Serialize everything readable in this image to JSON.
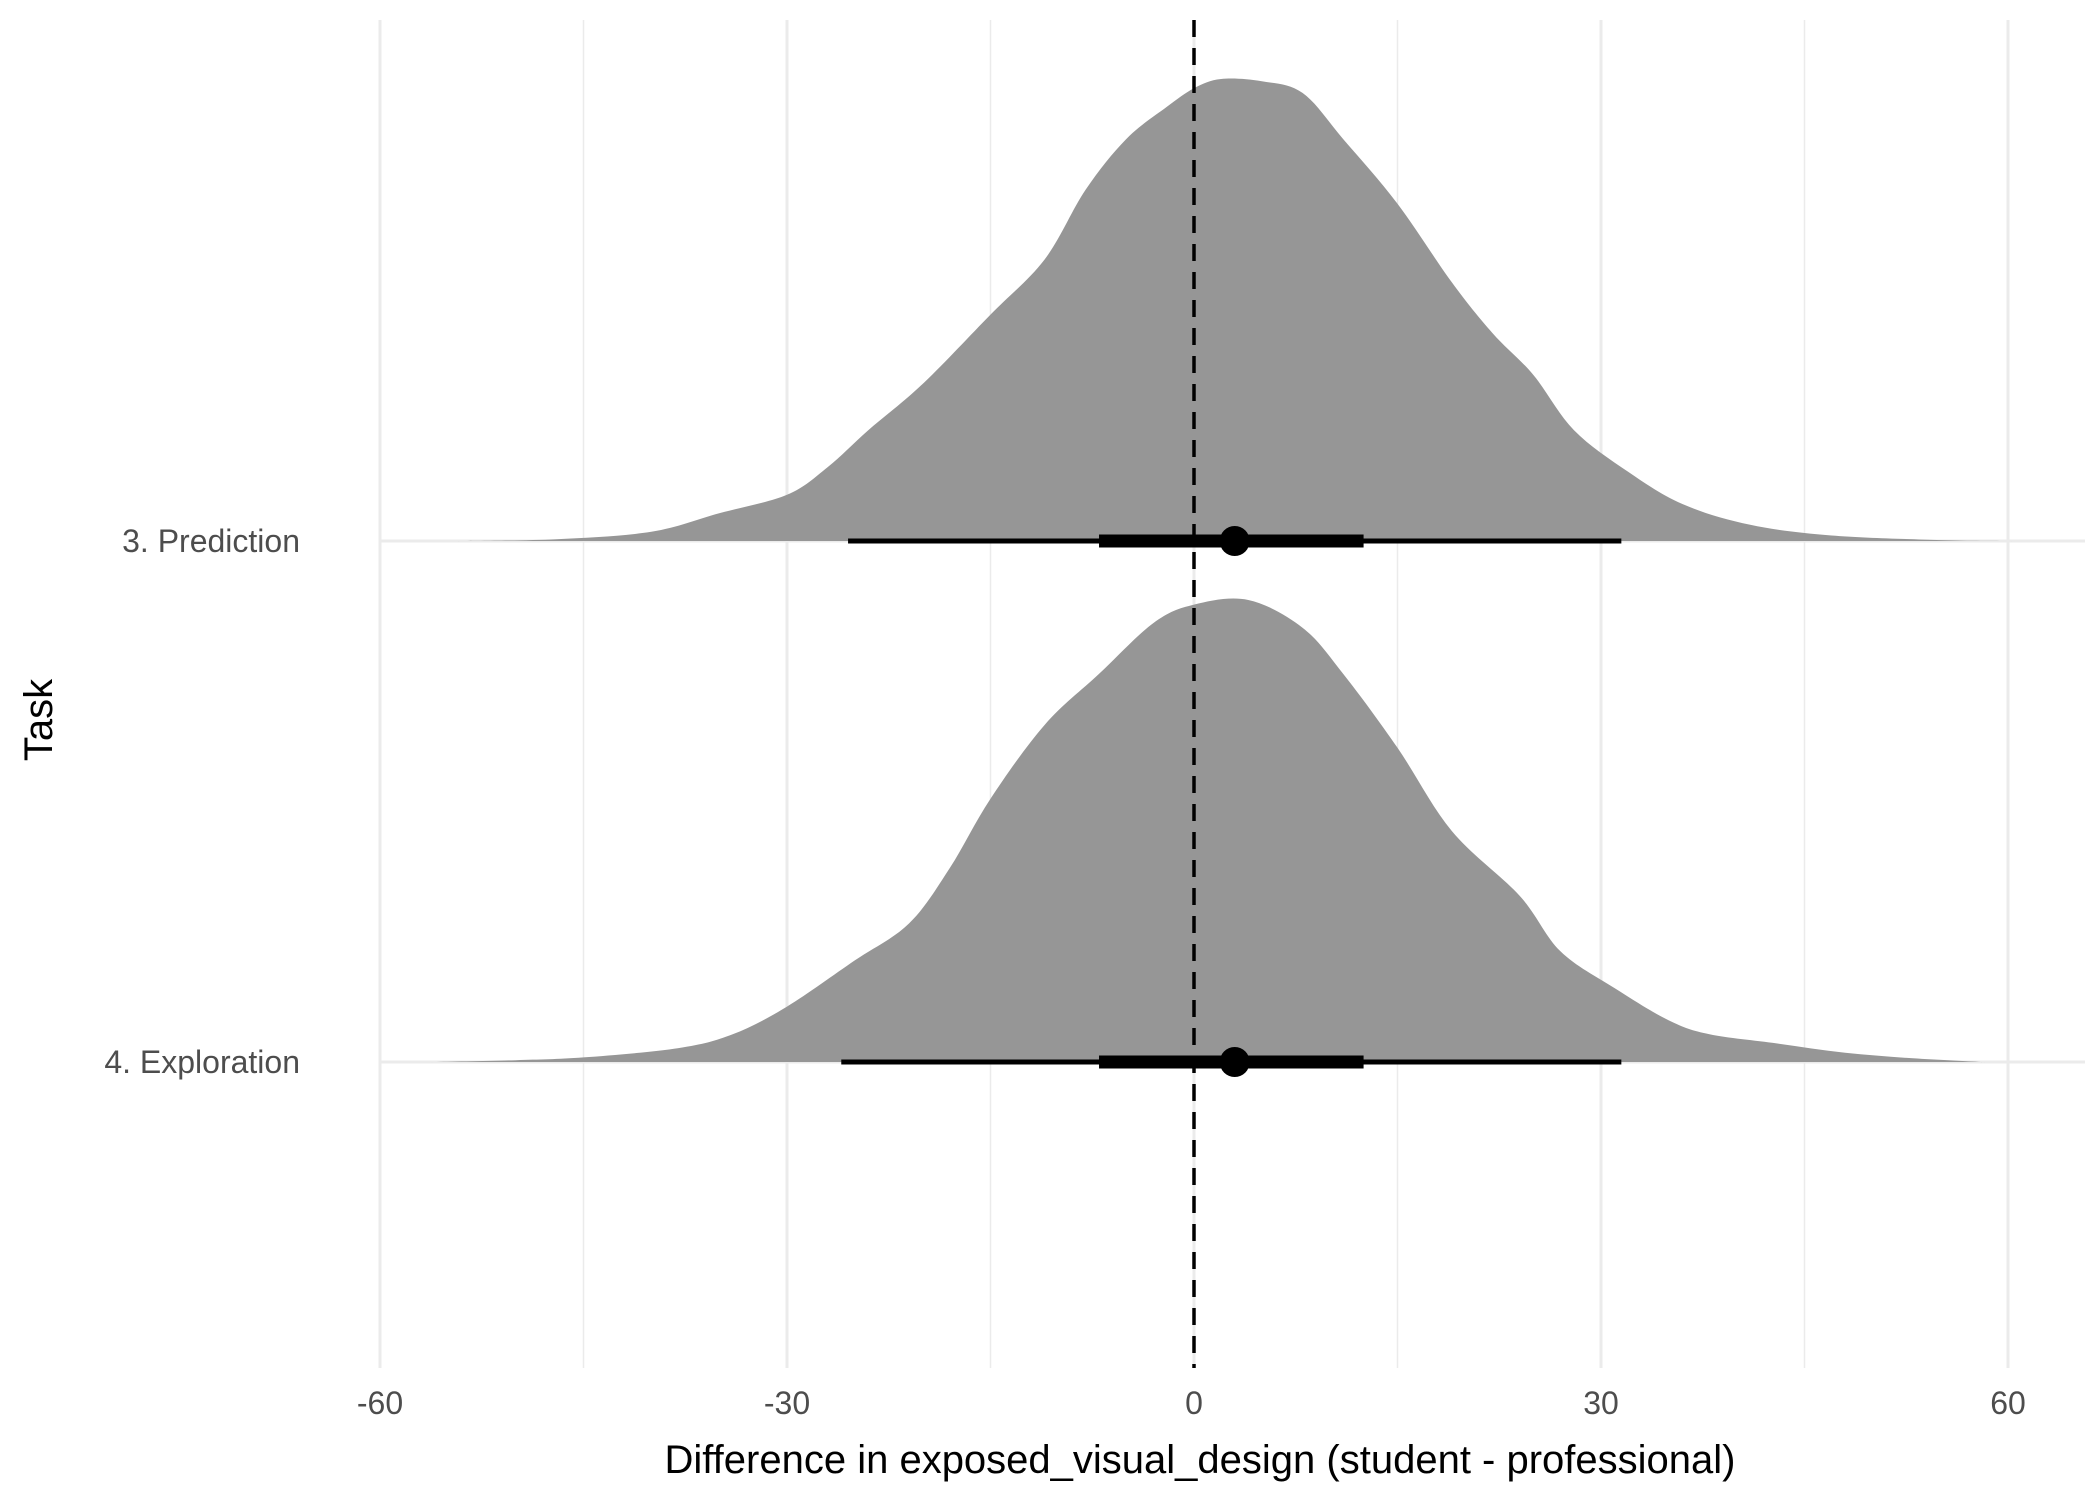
{
  "chart_data": {
    "type": "area",
    "subtype": "ridgeline density with point-interval",
    "xlabel": "Difference in exposed_visual_design (student - professional)",
    "ylabel": "Task",
    "xlim": [
      -60,
      60
    ],
    "x_ticks": [
      -60,
      -30,
      0,
      30,
      60
    ],
    "x_minor_ticks": [
      -45,
      -15,
      15,
      45
    ],
    "categories": [
      "3. Prediction",
      "4. Exploration"
    ],
    "reference_line": {
      "x": 0,
      "style": "dashed"
    },
    "grid": true,
    "legend": "none",
    "colors": {
      "density_fill": "#969696",
      "interval": "#000000",
      "grid": "#ebebeb"
    },
    "series": [
      {
        "category": "3. Prediction",
        "point": 3,
        "interval_66": [
          -7,
          12.5
        ],
        "interval_95": [
          -25.5,
          31.5
        ],
        "density": [
          [
            -54,
            0
          ],
          [
            -47,
            0.004
          ],
          [
            -40,
            0.02
          ],
          [
            -35,
            0.06
          ],
          [
            -30,
            0.1
          ],
          [
            -27,
            0.16
          ],
          [
            -24,
            0.24
          ],
          [
            -20,
            0.34
          ],
          [
            -15,
            0.49
          ],
          [
            -11,
            0.61
          ],
          [
            -8,
            0.76
          ],
          [
            -5,
            0.87
          ],
          [
            -2,
            0.94
          ],
          [
            0,
            0.98
          ],
          [
            2,
            1.0
          ],
          [
            5,
            0.995
          ],
          [
            8,
            0.97
          ],
          [
            11,
            0.87
          ],
          [
            15,
            0.73
          ],
          [
            19,
            0.56
          ],
          [
            22,
            0.45
          ],
          [
            25,
            0.36
          ],
          [
            28,
            0.24
          ],
          [
            32,
            0.15
          ],
          [
            36,
            0.08
          ],
          [
            41,
            0.035
          ],
          [
            47,
            0.012
          ],
          [
            55,
            0.002
          ],
          [
            60,
            0
          ]
        ]
      },
      {
        "category": "4. Exploration",
        "point": 3,
        "interval_66": [
          -7,
          12.5
        ],
        "interval_95": [
          -26,
          31.5
        ],
        "density": [
          [
            -56,
            0
          ],
          [
            -50,
            0.004
          ],
          [
            -45,
            0.01
          ],
          [
            -38,
            0.03
          ],
          [
            -34,
            0.06
          ],
          [
            -30,
            0.12
          ],
          [
            -25,
            0.22
          ],
          [
            -21,
            0.3
          ],
          [
            -18,
            0.42
          ],
          [
            -15,
            0.57
          ],
          [
            -11,
            0.73
          ],
          [
            -7,
            0.84
          ],
          [
            -3,
            0.95
          ],
          [
            0,
            0.99
          ],
          [
            4,
            1.0
          ],
          [
            8,
            0.94
          ],
          [
            11,
            0.84
          ],
          [
            15,
            0.68
          ],
          [
            19,
            0.5
          ],
          [
            24,
            0.36
          ],
          [
            27,
            0.24
          ],
          [
            31,
            0.16
          ],
          [
            35,
            0.09
          ],
          [
            38,
            0.06
          ],
          [
            43,
            0.04
          ],
          [
            48,
            0.02
          ],
          [
            53,
            0.008
          ],
          [
            58,
            0
          ]
        ]
      }
    ]
  }
}
